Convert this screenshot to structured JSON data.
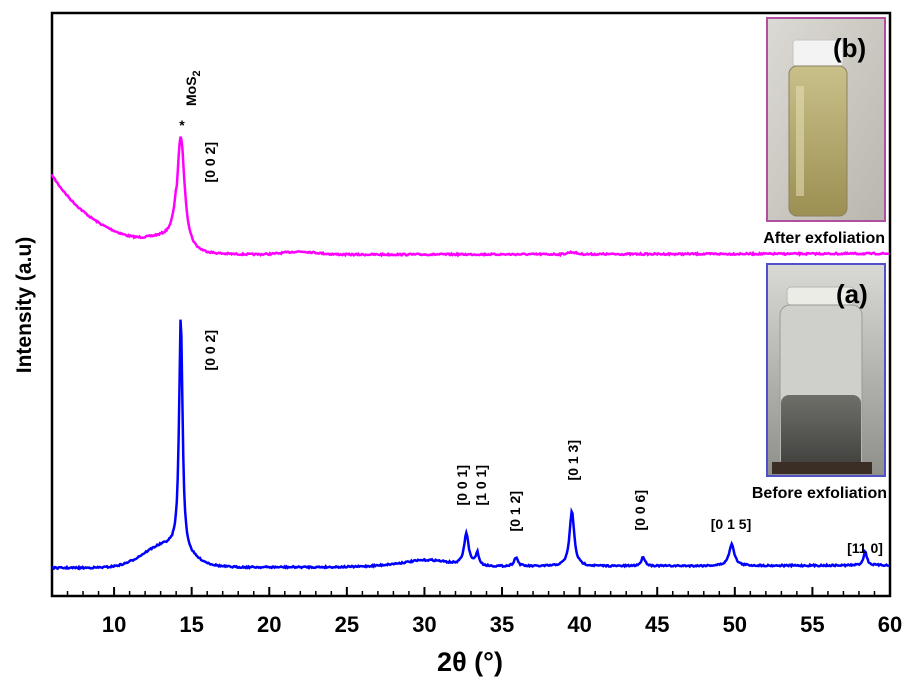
{
  "chart_data": {
    "type": "line",
    "xlabel": "2θ (°)",
    "ylabel": "Intensity (a.u)",
    "xlim": [
      6,
      60
    ],
    "xticks": [
      10,
      15,
      20,
      25,
      30,
      35,
      40,
      45,
      50,
      55,
      60
    ],
    "y_ticks_shown": false,
    "grid": false,
    "series": [
      {
        "name": "After exfoliation",
        "color": "#ff00ff",
        "peaks": [
          {
            "x": 14.3,
            "label": "[0 0 2]",
            "marker": "*",
            "marker_label": "MoS2"
          }
        ]
      },
      {
        "name": "Before exfoliation",
        "color": "#0000ff",
        "peaks": [
          {
            "x": 14.3,
            "label": "[0 0 2]"
          },
          {
            "x": 32.7,
            "label": "[0 0 1]"
          },
          {
            "x": 33.4,
            "label": "[1 0 1]"
          },
          {
            "x": 35.9,
            "label": "[0 1 2]"
          },
          {
            "x": 39.5,
            "label": "[0 1 3]"
          },
          {
            "x": 44.1,
            "label": "[0 0 6]"
          },
          {
            "x": 49.8,
            "label": "[0 1 5]"
          },
          {
            "x": 58.4,
            "label": "[11 0]"
          }
        ]
      }
    ],
    "insets": [
      {
        "label": "(b)",
        "caption": "After exfoliation",
        "border_color": "#b04fa0"
      },
      {
        "label": "(a)",
        "caption": "Before exfoliation",
        "border_color": "#5050c8"
      }
    ],
    "annotations": {
      "marker_star": "*",
      "mos2_main": "MoS",
      "mos2_sub": "2"
    }
  }
}
